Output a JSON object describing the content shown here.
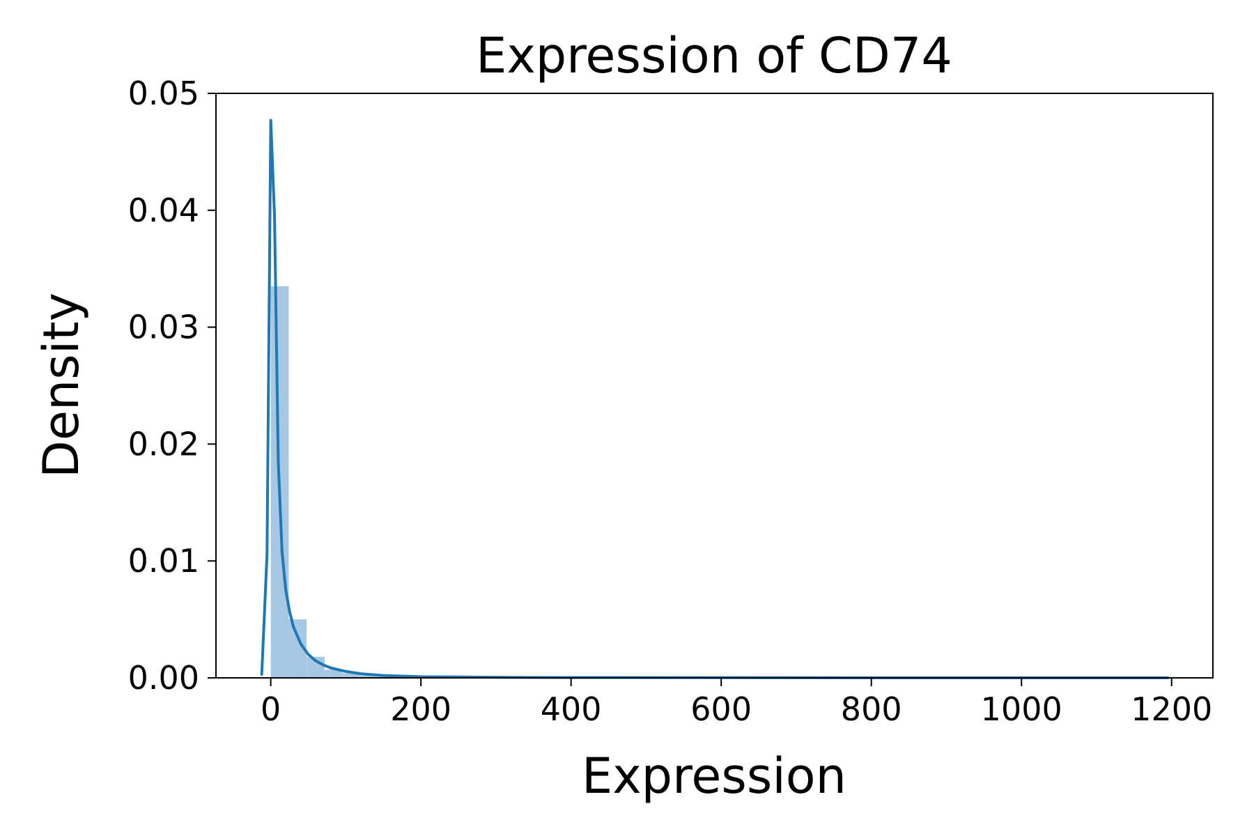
{
  "chart_data": {
    "type": "histogram",
    "title": "Expression of CD74",
    "xlabel": "Expression",
    "ylabel": "Density",
    "xlim": [
      -73,
      1255
    ],
    "ylim": [
      0,
      0.05
    ],
    "x_ticks": [
      0,
      200,
      400,
      600,
      800,
      1000,
      1200
    ],
    "x_tick_labels": [
      "0",
      "200",
      "400",
      "600",
      "800",
      "1000",
      "1200"
    ],
    "y_ticks": [
      0.0,
      0.01,
      0.02,
      0.03,
      0.04,
      0.05
    ],
    "y_tick_labels": [
      "0.00",
      "0.01",
      "0.02",
      "0.03",
      "0.04",
      "0.05"
    ],
    "grid": false,
    "colors": {
      "bar": "#a6c8e2",
      "line": "#1f77b4"
    },
    "histogram": {
      "bin_edges": [
        0,
        23.9,
        47.8,
        71.7,
        95.6,
        119.5,
        143.4,
        167.3,
        191.2,
        215.1,
        239,
        262.9,
        286.8,
        310.7,
        334.6,
        358.5,
        382.4,
        406.3,
        430.2,
        454.1,
        478
      ],
      "density": [
        0.0335,
        0.005,
        0.0018,
        0.0007,
        0.0004,
        0.0002,
        0.00015,
        0.0001,
        0.0001,
        5e-05,
        5e-05,
        3e-05,
        3e-05,
        2e-05,
        2e-05,
        1e-05,
        1e-05,
        1e-05,
        1e-05,
        1e-05
      ]
    },
    "kde": {
      "x": [
        -12,
        -5,
        0,
        5,
        10,
        15,
        20,
        25,
        30,
        40,
        50,
        60,
        70,
        80,
        100,
        120,
        150,
        200,
        300,
        400,
        600,
        800,
        1000,
        1195
      ],
      "y": [
        0.0003,
        0.0105,
        0.0477,
        0.0395,
        0.0185,
        0.0108,
        0.0075,
        0.0057,
        0.0044,
        0.0029,
        0.002,
        0.00145,
        0.0011,
        0.00085,
        0.00055,
        0.00035,
        0.0002,
        0.0001,
        5e-05,
        3e-05,
        2e-05,
        1e-05,
        1e-05,
        1e-05
      ]
    }
  }
}
